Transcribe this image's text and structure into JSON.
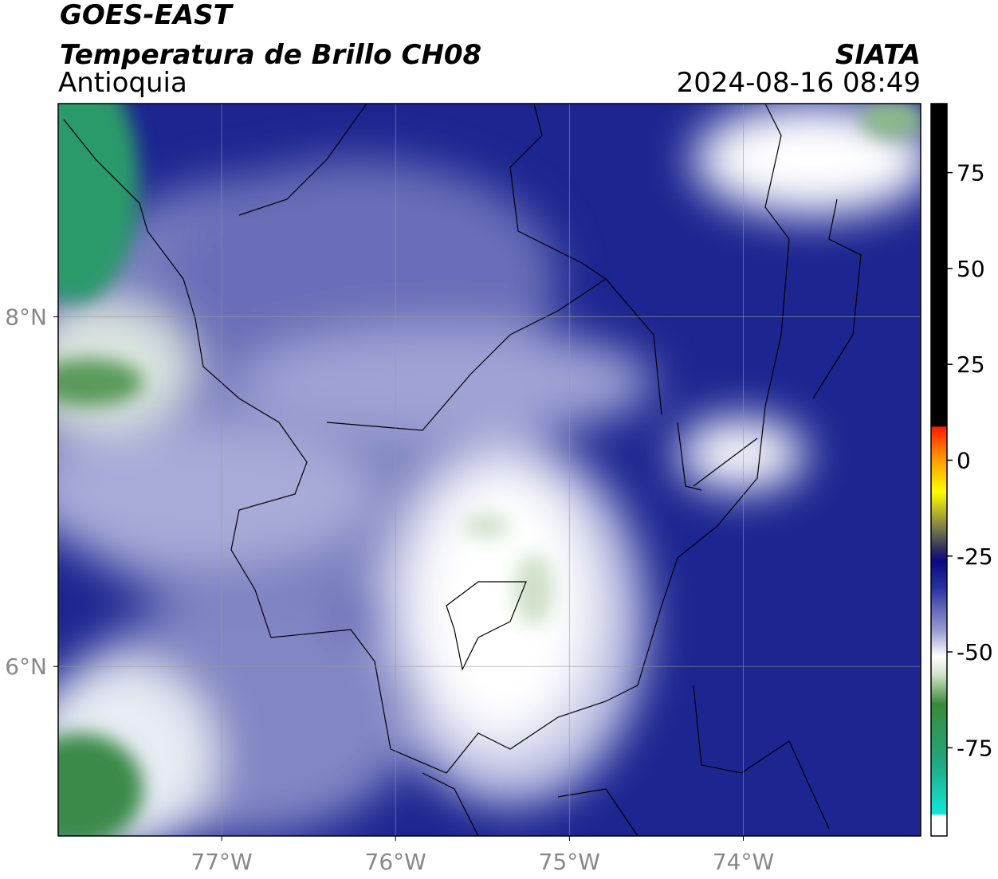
{
  "header": {
    "title": "GOES-EAST",
    "subtitle": "Temperatura de Brillo CH08",
    "region": "Antioquia",
    "source": "SIATA",
    "datetime": "2024-08-16 08:49"
  },
  "map": {
    "xlim": [
      -77.94,
      -72.98
    ],
    "ylim": [
      5.03,
      9.22
    ],
    "xticks": [
      {
        "value": -77,
        "label": "77°W"
      },
      {
        "value": -76,
        "label": "76°W"
      },
      {
        "value": -75,
        "label": "75°W"
      },
      {
        "value": -74,
        "label": "74°W"
      }
    ],
    "yticks": [
      {
        "value": 8,
        "label": "8°N"
      },
      {
        "value": 6,
        "label": "6°N"
      }
    ],
    "grid": true
  },
  "colorbar": {
    "lim": [
      -98,
      93
    ],
    "ticks": [
      75,
      50,
      25,
      0,
      -25,
      -50,
      -75
    ]
  }
}
